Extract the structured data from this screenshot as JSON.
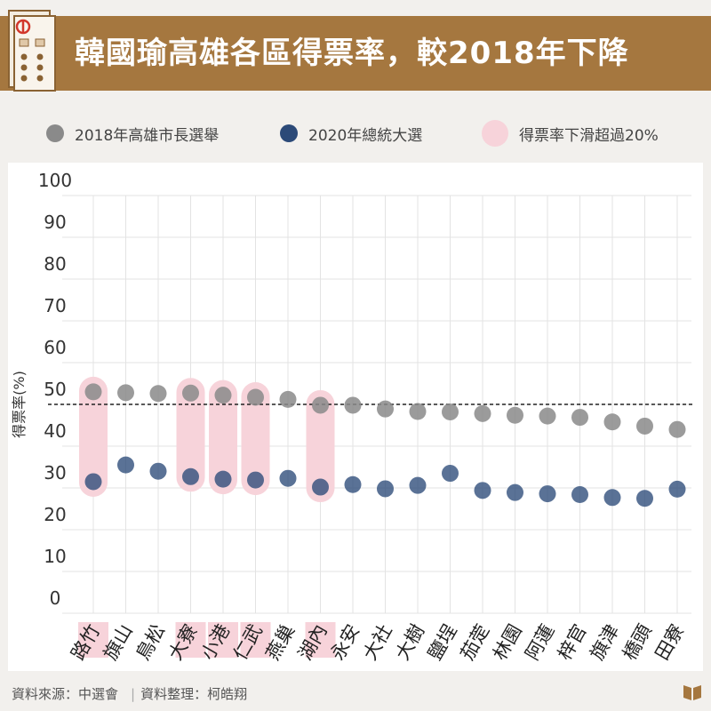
{
  "header": {
    "title": "韓國瑜高雄各區得票率，較2018年下降"
  },
  "legend": {
    "items": [
      {
        "label": "2018年高雄市長選舉",
        "color": "#8a8a8a"
      },
      {
        "label": "2020年總統大選",
        "color": "#2c4a78"
      },
      {
        "label": "得票率下滑超過20%",
        "color": "#f7d3da"
      }
    ]
  },
  "chart_data": {
    "type": "scatter",
    "title": "",
    "xlabel": "",
    "ylabel": "得票率(%)",
    "ylim": [
      0,
      100
    ],
    "yticks": [
      0,
      10,
      20,
      30,
      40,
      50,
      60,
      70,
      80,
      90,
      100
    ],
    "reference_line": 50,
    "grid": true,
    "categories": [
      "路竹",
      "旗山",
      "鳥松",
      "大寮",
      "小港",
      "仁武",
      "燕巢",
      "湖內",
      "永安",
      "大社",
      "大樹",
      "鹽埕",
      "茄萣",
      "林園",
      "阿蓮",
      "梓官",
      "旗津",
      "橋頭",
      "田寮"
    ],
    "highlighted": [
      "路竹",
      "大寮",
      "小港",
      "仁武",
      "湖內"
    ],
    "series": [
      {
        "name": "2018年高雄市長選舉",
        "color": "#8a8a8a",
        "values": [
          53.0,
          52.8,
          52.6,
          52.7,
          52.2,
          51.7,
          51.2,
          49.8,
          49.8,
          48.9,
          48.3,
          48.2,
          47.8,
          47.4,
          47.2,
          46.9,
          45.8,
          44.8,
          44.0
        ]
      },
      {
        "name": "2020年總統大選",
        "color": "#2c4a78",
        "values": [
          31.5,
          35.5,
          34.0,
          32.7,
          32.1,
          31.9,
          32.3,
          30.2,
          30.8,
          29.8,
          30.6,
          33.5,
          29.4,
          28.9,
          28.6,
          28.4,
          27.7,
          27.5,
          29.7
        ]
      }
    ]
  },
  "footer": {
    "source": "資料來源：中選會",
    "editor": "資料整理：柯皓翔"
  }
}
